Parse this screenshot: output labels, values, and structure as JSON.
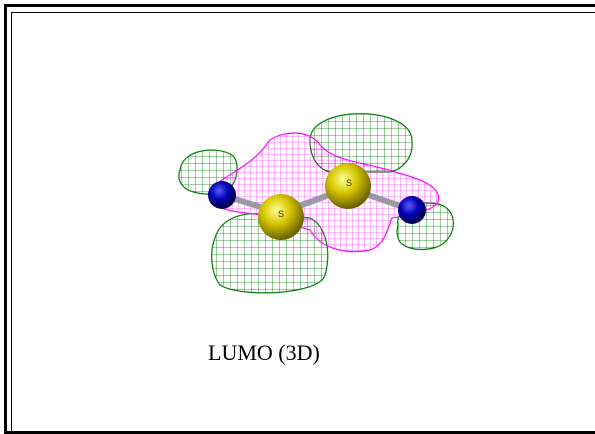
{
  "figure": {
    "caption": "LUMO (3D)",
    "atom_labels": [
      "S",
      "S"
    ],
    "colors": {
      "positive_lobe": "#008000",
      "negative_lobe": "#ff00ff",
      "sulfur": "#d4c400",
      "nitrogen": "#000080",
      "bond": "#9a9aa6"
    }
  }
}
